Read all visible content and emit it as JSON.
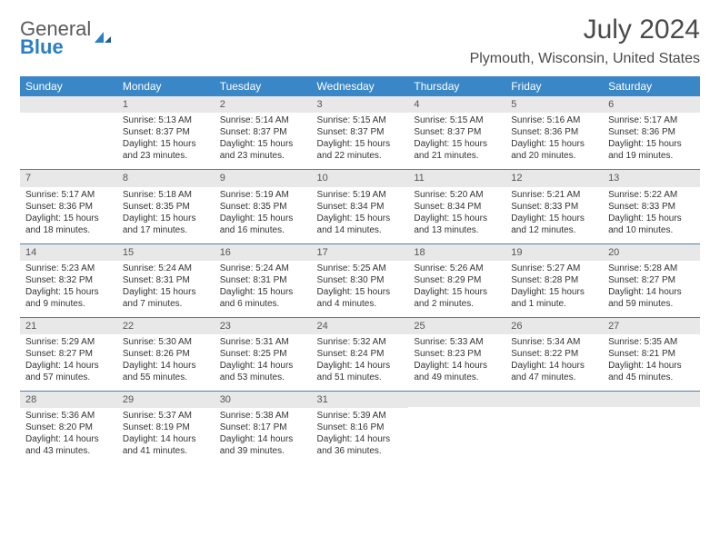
{
  "logo": {
    "word1": "General",
    "word2": "Blue"
  },
  "title": "July 2024",
  "location": "Plymouth, Wisconsin, United States",
  "colors": {
    "header_bg": "#3a87c8",
    "header_text": "#ffffff",
    "daynum_bg": "#e8e8e8",
    "week_divider": "#4a7fb0",
    "body_text": "#333333",
    "title_text": "#4a4a4a",
    "logo_gray": "#5a5a5a",
    "logo_blue": "#2a7ec5"
  },
  "day_names": [
    "Sunday",
    "Monday",
    "Tuesday",
    "Wednesday",
    "Thursday",
    "Friday",
    "Saturday"
  ],
  "weeks": [
    [
      null,
      {
        "n": "1",
        "sr": "Sunrise: 5:13 AM",
        "ss": "Sunset: 8:37 PM",
        "d1": "Daylight: 15 hours",
        "d2": "and 23 minutes."
      },
      {
        "n": "2",
        "sr": "Sunrise: 5:14 AM",
        "ss": "Sunset: 8:37 PM",
        "d1": "Daylight: 15 hours",
        "d2": "and 23 minutes."
      },
      {
        "n": "3",
        "sr": "Sunrise: 5:15 AM",
        "ss": "Sunset: 8:37 PM",
        "d1": "Daylight: 15 hours",
        "d2": "and 22 minutes."
      },
      {
        "n": "4",
        "sr": "Sunrise: 5:15 AM",
        "ss": "Sunset: 8:37 PM",
        "d1": "Daylight: 15 hours",
        "d2": "and 21 minutes."
      },
      {
        "n": "5",
        "sr": "Sunrise: 5:16 AM",
        "ss": "Sunset: 8:36 PM",
        "d1": "Daylight: 15 hours",
        "d2": "and 20 minutes."
      },
      {
        "n": "6",
        "sr": "Sunrise: 5:17 AM",
        "ss": "Sunset: 8:36 PM",
        "d1": "Daylight: 15 hours",
        "d2": "and 19 minutes."
      }
    ],
    [
      {
        "n": "7",
        "sr": "Sunrise: 5:17 AM",
        "ss": "Sunset: 8:36 PM",
        "d1": "Daylight: 15 hours",
        "d2": "and 18 minutes."
      },
      {
        "n": "8",
        "sr": "Sunrise: 5:18 AM",
        "ss": "Sunset: 8:35 PM",
        "d1": "Daylight: 15 hours",
        "d2": "and 17 minutes."
      },
      {
        "n": "9",
        "sr": "Sunrise: 5:19 AM",
        "ss": "Sunset: 8:35 PM",
        "d1": "Daylight: 15 hours",
        "d2": "and 16 minutes."
      },
      {
        "n": "10",
        "sr": "Sunrise: 5:19 AM",
        "ss": "Sunset: 8:34 PM",
        "d1": "Daylight: 15 hours",
        "d2": "and 14 minutes."
      },
      {
        "n": "11",
        "sr": "Sunrise: 5:20 AM",
        "ss": "Sunset: 8:34 PM",
        "d1": "Daylight: 15 hours",
        "d2": "and 13 minutes."
      },
      {
        "n": "12",
        "sr": "Sunrise: 5:21 AM",
        "ss": "Sunset: 8:33 PM",
        "d1": "Daylight: 15 hours",
        "d2": "and 12 minutes."
      },
      {
        "n": "13",
        "sr": "Sunrise: 5:22 AM",
        "ss": "Sunset: 8:33 PM",
        "d1": "Daylight: 15 hours",
        "d2": "and 10 minutes."
      }
    ],
    [
      {
        "n": "14",
        "sr": "Sunrise: 5:23 AM",
        "ss": "Sunset: 8:32 PM",
        "d1": "Daylight: 15 hours",
        "d2": "and 9 minutes."
      },
      {
        "n": "15",
        "sr": "Sunrise: 5:24 AM",
        "ss": "Sunset: 8:31 PM",
        "d1": "Daylight: 15 hours",
        "d2": "and 7 minutes."
      },
      {
        "n": "16",
        "sr": "Sunrise: 5:24 AM",
        "ss": "Sunset: 8:31 PM",
        "d1": "Daylight: 15 hours",
        "d2": "and 6 minutes."
      },
      {
        "n": "17",
        "sr": "Sunrise: 5:25 AM",
        "ss": "Sunset: 8:30 PM",
        "d1": "Daylight: 15 hours",
        "d2": "and 4 minutes."
      },
      {
        "n": "18",
        "sr": "Sunrise: 5:26 AM",
        "ss": "Sunset: 8:29 PM",
        "d1": "Daylight: 15 hours",
        "d2": "and 2 minutes."
      },
      {
        "n": "19",
        "sr": "Sunrise: 5:27 AM",
        "ss": "Sunset: 8:28 PM",
        "d1": "Daylight: 15 hours",
        "d2": "and 1 minute."
      },
      {
        "n": "20",
        "sr": "Sunrise: 5:28 AM",
        "ss": "Sunset: 8:27 PM",
        "d1": "Daylight: 14 hours",
        "d2": "and 59 minutes."
      }
    ],
    [
      {
        "n": "21",
        "sr": "Sunrise: 5:29 AM",
        "ss": "Sunset: 8:27 PM",
        "d1": "Daylight: 14 hours",
        "d2": "and 57 minutes."
      },
      {
        "n": "22",
        "sr": "Sunrise: 5:30 AM",
        "ss": "Sunset: 8:26 PM",
        "d1": "Daylight: 14 hours",
        "d2": "and 55 minutes."
      },
      {
        "n": "23",
        "sr": "Sunrise: 5:31 AM",
        "ss": "Sunset: 8:25 PM",
        "d1": "Daylight: 14 hours",
        "d2": "and 53 minutes."
      },
      {
        "n": "24",
        "sr": "Sunrise: 5:32 AM",
        "ss": "Sunset: 8:24 PM",
        "d1": "Daylight: 14 hours",
        "d2": "and 51 minutes."
      },
      {
        "n": "25",
        "sr": "Sunrise: 5:33 AM",
        "ss": "Sunset: 8:23 PM",
        "d1": "Daylight: 14 hours",
        "d2": "and 49 minutes."
      },
      {
        "n": "26",
        "sr": "Sunrise: 5:34 AM",
        "ss": "Sunset: 8:22 PM",
        "d1": "Daylight: 14 hours",
        "d2": "and 47 minutes."
      },
      {
        "n": "27",
        "sr": "Sunrise: 5:35 AM",
        "ss": "Sunset: 8:21 PM",
        "d1": "Daylight: 14 hours",
        "d2": "and 45 minutes."
      }
    ],
    [
      {
        "n": "28",
        "sr": "Sunrise: 5:36 AM",
        "ss": "Sunset: 8:20 PM",
        "d1": "Daylight: 14 hours",
        "d2": "and 43 minutes."
      },
      {
        "n": "29",
        "sr": "Sunrise: 5:37 AM",
        "ss": "Sunset: 8:19 PM",
        "d1": "Daylight: 14 hours",
        "d2": "and 41 minutes."
      },
      {
        "n": "30",
        "sr": "Sunrise: 5:38 AM",
        "ss": "Sunset: 8:17 PM",
        "d1": "Daylight: 14 hours",
        "d2": "and 39 minutes."
      },
      {
        "n": "31",
        "sr": "Sunrise: 5:39 AM",
        "ss": "Sunset: 8:16 PM",
        "d1": "Daylight: 14 hours",
        "d2": "and 36 minutes."
      },
      null,
      null,
      null
    ]
  ]
}
